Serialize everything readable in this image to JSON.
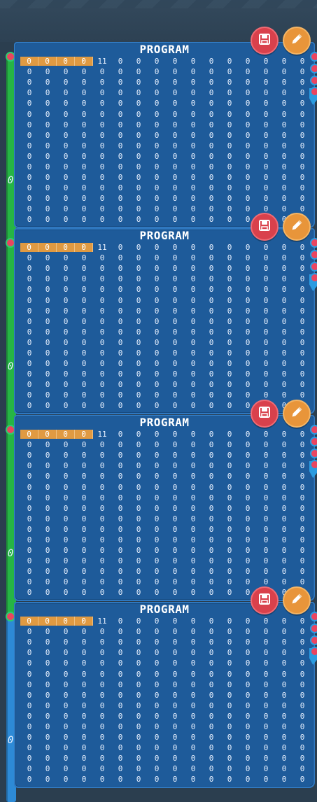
{
  "panels": [
    {
      "title": "PROGRAM",
      "wire_label": "0",
      "wire_color": "green"
    },
    {
      "title": "PROGRAM",
      "wire_label": "0",
      "wire_color": "green"
    },
    {
      "title": "PROGRAM",
      "wire_label": "0",
      "wire_color": "green"
    },
    {
      "title": "PROGRAM",
      "wire_label": "0",
      "wire_color": "blue"
    }
  ],
  "memory": {
    "first_row": [
      "0",
      "0",
      "0",
      "0",
      "11",
      "0",
      "0",
      "0",
      "0",
      "0",
      "0",
      "0",
      "0",
      "0",
      "0",
      "0"
    ],
    "highlighted_cells": 4,
    "default_value": "0",
    "columns": 16,
    "rows": 17
  },
  "buttons": {
    "save_icon": "save-icon",
    "edit_icon": "pencil-icon"
  },
  "colors": {
    "panel": "#1e5b9a",
    "highlight": "#e09a42",
    "save_button": "#d9414c",
    "edit_button": "#e8953a",
    "wire_green": "#26b545",
    "wire_blue": "#2d8ad6"
  }
}
